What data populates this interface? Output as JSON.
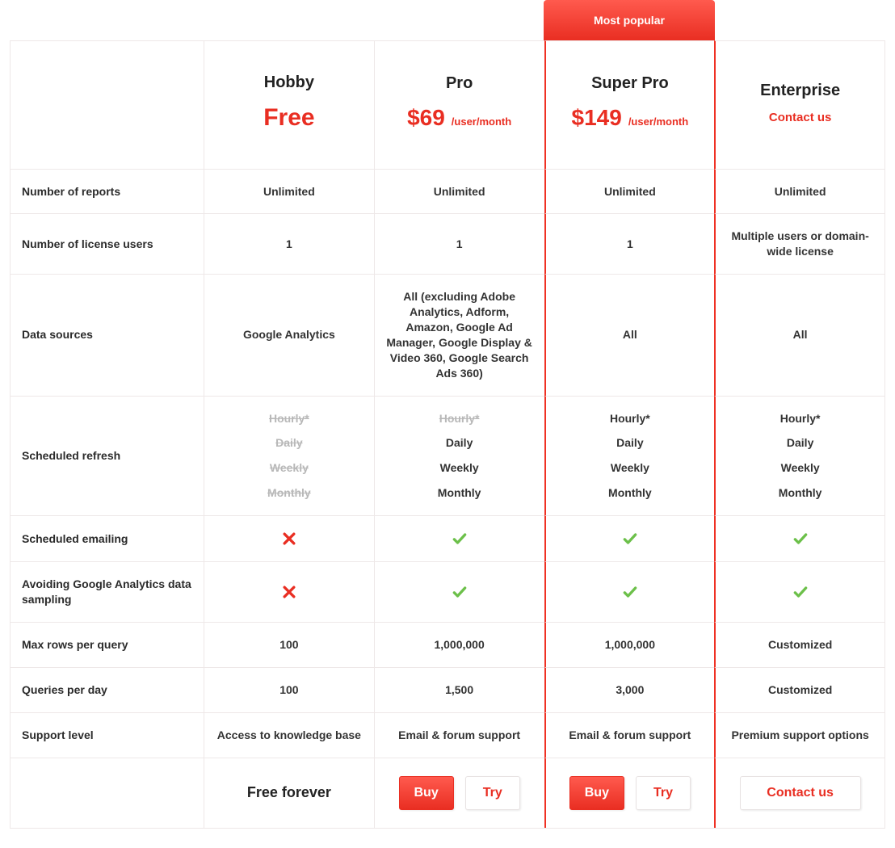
{
  "colors": {
    "accent": "#e92e22",
    "accent_gradient_top": "#ff5a4e",
    "zebra_even": "#fdf4f2",
    "zebra_odd": "#ffffff",
    "border": "#eee8e8",
    "text": "#2b2b2b",
    "muted": "#b8b8b8",
    "check": "#6cc04a"
  },
  "popular_badge": "Most popular",
  "popular_index": 2,
  "plans": [
    {
      "name": "Hobby",
      "price": "Free",
      "per": "",
      "cta_kind": "free",
      "cta_text": "Free forever"
    },
    {
      "name": "Pro",
      "price": "$69",
      "per": "/user/month",
      "cta_kind": "buy_try",
      "buy": "Buy",
      "try": "Try"
    },
    {
      "name": "Super Pro",
      "price": "$149",
      "per": "/user/month",
      "cta_kind": "buy_try",
      "buy": "Buy",
      "try": "Try"
    },
    {
      "name": "Enterprise",
      "price": "",
      "per": "",
      "contact": "Contact us",
      "cta_kind": "contact",
      "cta_text": "Contact us"
    }
  ],
  "rows": [
    {
      "label": "Number of reports",
      "cells": [
        "Unlimited",
        "Unlimited",
        "Unlimited",
        "Unlimited"
      ]
    },
    {
      "label": "Number of license users",
      "cells": [
        "1",
        "1",
        "1",
        "Multiple users or domain-wide license"
      ]
    },
    {
      "label": "Data sources",
      "cells": [
        "Google Analytics",
        "All (excluding Adobe Analytics, Adform, Amazon, Google Ad Manager, Google Display & Video 360, Google Search Ads 360)",
        "All",
        "All"
      ]
    },
    {
      "label": "Scheduled refresh",
      "type": "stack",
      "lines": [
        "Hourly*",
        "Daily",
        "Weekly",
        "Monthly"
      ],
      "availability": [
        [
          false,
          false,
          false,
          false
        ],
        [
          false,
          true,
          true,
          true
        ],
        [
          true,
          true,
          true,
          true
        ],
        [
          true,
          true,
          true,
          true
        ]
      ]
    },
    {
      "label": "Scheduled emailing",
      "type": "bool",
      "cells": [
        false,
        true,
        true,
        true
      ]
    },
    {
      "label": "Avoiding Google Analytics data sampling",
      "type": "bool",
      "cells": [
        false,
        true,
        true,
        true
      ]
    },
    {
      "label": "Max rows per query",
      "cells": [
        "100",
        "1,000,000",
        "1,000,000",
        "Customized"
      ]
    },
    {
      "label": "Queries per day",
      "cells": [
        "100",
        "1,500",
        "3,000",
        "Customized"
      ]
    },
    {
      "label": "Support level",
      "cells": [
        "Access to knowledge base",
        "Email & forum support",
        "Email & forum support",
        "Premium support options"
      ]
    }
  ]
}
